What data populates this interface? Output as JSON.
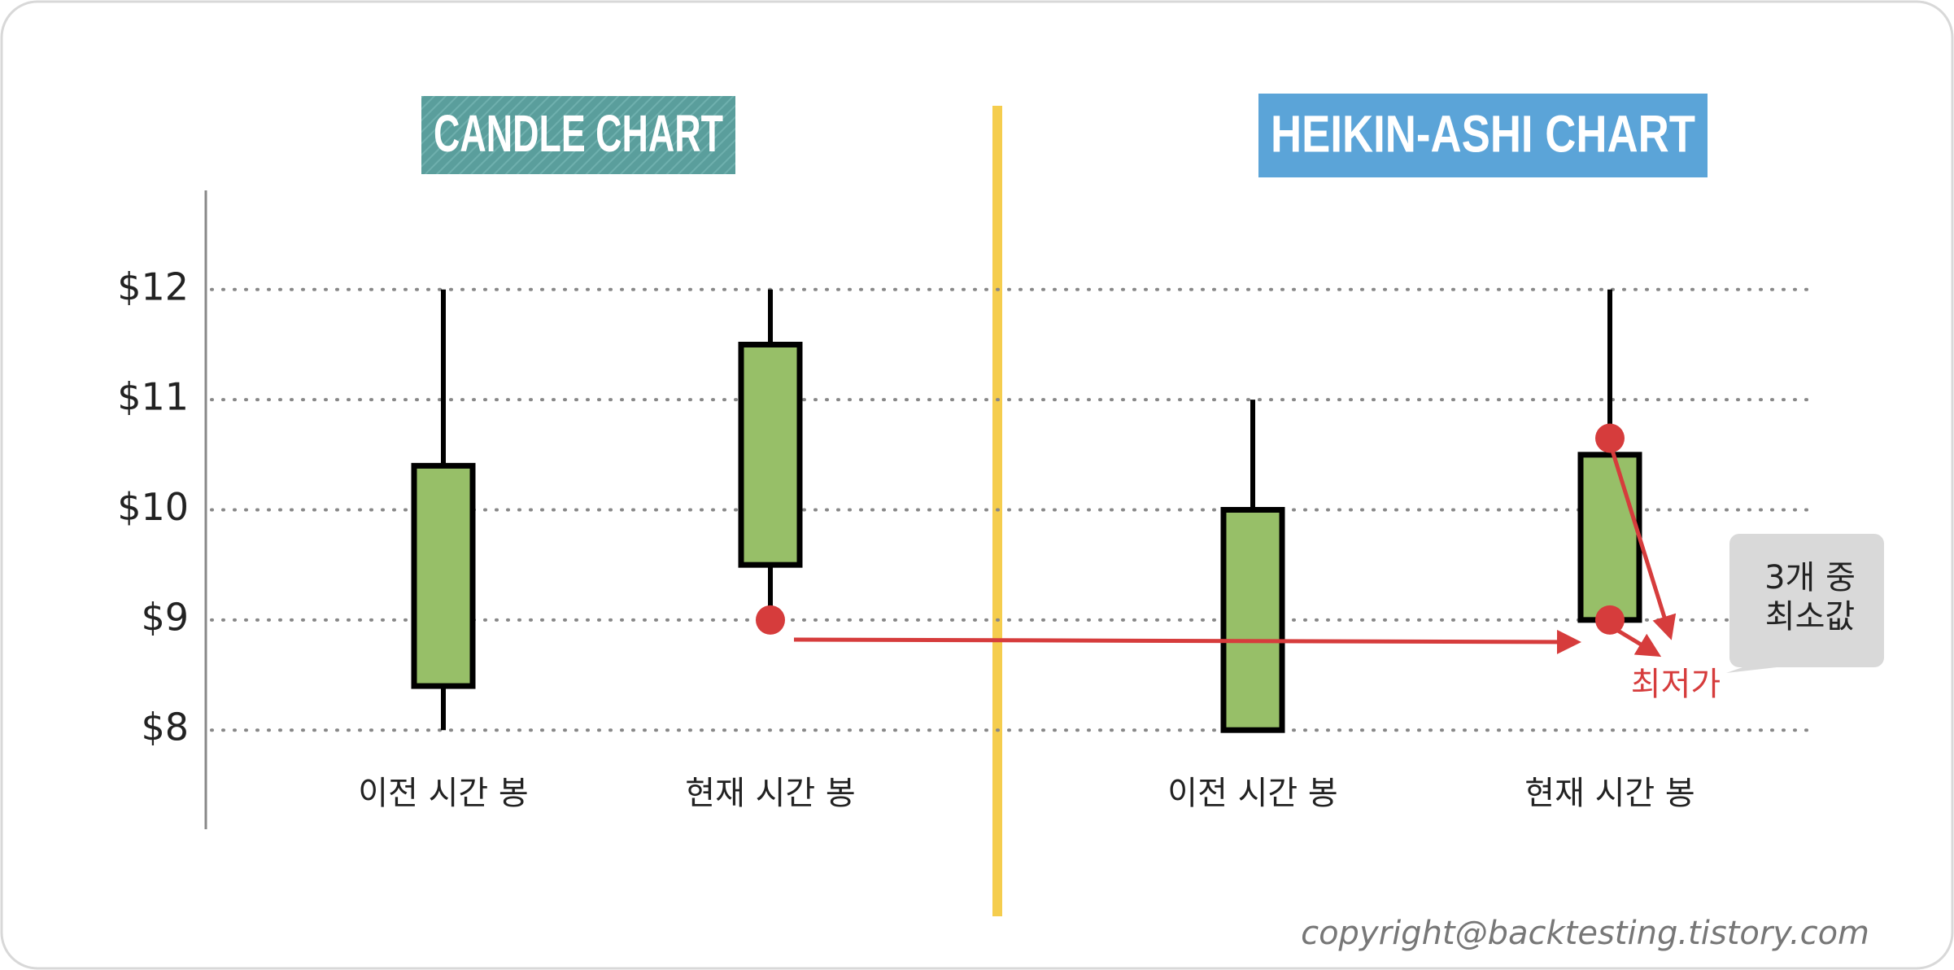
{
  "chart_data": {
    "type": "candlestick",
    "ylim": [
      7.1,
      12.9
    ],
    "yticks": [
      {
        "value": 12,
        "label": "$12"
      },
      {
        "value": 11,
        "label": "$11"
      },
      {
        "value": 10,
        "label": "$10"
      },
      {
        "value": 9,
        "label": "$9"
      },
      {
        "value": 8,
        "label": "$8"
      }
    ],
    "grid": true,
    "up_color": "#97bf68",
    "marker_color": "#d63c3c",
    "panels": [
      {
        "title": "CANDLE CHART",
        "title_color": "#5a9e9c",
        "categories": [
          "이전 시간 봉",
          "현재 시간 봉"
        ],
        "open": [
          8.4,
          9.5
        ],
        "high": [
          12,
          12
        ],
        "low": [
          8,
          9
        ],
        "close": [
          10.4,
          11.5
        ],
        "markers": [
          9
        ]
      },
      {
        "title": "HEIKIN-ASHI CHART",
        "title_color": "#5ba4d8",
        "categories": [
          "이전 시간 봉",
          "현재 시간 봉"
        ],
        "open": [
          8,
          9
        ],
        "high": [
          11,
          12
        ],
        "low": [
          8,
          9
        ],
        "close": [
          10,
          10.5
        ],
        "markers": [
          10.65,
          9
        ]
      }
    ],
    "annotation": "최저가",
    "callout": [
      "3개 중",
      "최소값"
    ],
    "copyright": "copyright@backtesting.tistory.com"
  }
}
